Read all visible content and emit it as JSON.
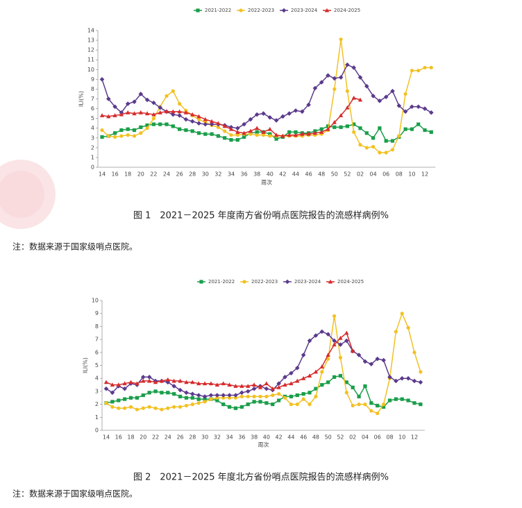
{
  "chart_data": [
    {
      "type": "line",
      "title": "图 1　2021－2025 年度南方省份哨点医院报告的流感样病例%",
      "note": "注：数据来源于国家级哨点医院。",
      "xlabel": "周次",
      "ylabel": "ILI(%)",
      "categories": [
        "14",
        null,
        "16",
        null,
        "18",
        null,
        "20",
        null,
        "22",
        null,
        "24",
        null,
        "26",
        null,
        "28",
        null,
        "30",
        null,
        "32",
        null,
        "34",
        null,
        "36",
        null,
        "38",
        null,
        "40",
        null,
        "42",
        null,
        "44",
        null,
        "46",
        null,
        "48",
        null,
        "50",
        null,
        "52",
        null,
        "02",
        null,
        "04",
        null,
        "06",
        null,
        "08",
        null,
        "10",
        null,
        "12",
        null
      ],
      "ylim": [
        0,
        14
      ],
      "yticks": [
        0,
        1,
        2,
        3,
        4,
        5,
        6,
        7,
        8,
        9,
        10,
        11,
        12,
        13,
        14
      ],
      "legend": "top",
      "series": [
        {
          "name": "2021-2022",
          "color": "#1a9e4a",
          "marker": "square",
          "values": [
            3.1,
            3.2,
            3.5,
            3.8,
            3.9,
            3.8,
            4.1,
            4.3,
            4.4,
            4.4,
            4.4,
            4.2,
            3.9,
            3.8,
            3.7,
            3.5,
            3.4,
            3.4,
            3.2,
            3.0,
            2.8,
            2.8,
            3.1,
            3.5,
            3.6,
            3.6,
            3.4,
            2.9,
            3.1,
            3.6,
            3.6,
            3.5,
            3.5,
            3.7,
            3.9,
            4.2,
            4.1,
            4.1,
            4.2,
            4.4,
            4.0,
            3.5,
            3.0,
            4.0,
            2.7,
            2.7,
            3.1,
            3.9,
            3.9,
            4.4,
            3.8,
            3.6
          ]
        },
        {
          "name": "2022-2023",
          "color": "#f2c122",
          "marker": "circle",
          "values": [
            3.8,
            3.2,
            3.1,
            3.2,
            3.3,
            3.2,
            3.5,
            4.0,
            5.0,
            6.2,
            7.3,
            7.8,
            6.5,
            5.8,
            5.3,
            4.9,
            4.6,
            4.3,
            4.1,
            3.7,
            3.3,
            3.3,
            3.4,
            3.4,
            3.3,
            3.3,
            3.2,
            3.2,
            3.2,
            3.2,
            3.2,
            3.2,
            3.3,
            3.3,
            3.4,
            3.8,
            8.0,
            13.1,
            7.8,
            3.6,
            2.3,
            2.0,
            2.1,
            1.5,
            1.5,
            1.8,
            3.2,
            7.5,
            9.9,
            9.9,
            10.2,
            10.2
          ]
        },
        {
          "name": "2023-2024",
          "color": "#5b3a8c",
          "marker": "diamond",
          "values": [
            9.0,
            7.0,
            6.2,
            5.6,
            6.5,
            6.7,
            7.5,
            6.9,
            6.6,
            6.1,
            5.7,
            5.4,
            5.3,
            4.9,
            4.7,
            4.5,
            4.4,
            4.4,
            4.4,
            4.3,
            4.1,
            4.0,
            4.4,
            4.9,
            5.4,
            5.5,
            5.1,
            4.8,
            5.2,
            5.5,
            5.8,
            5.7,
            6.4,
            8.1,
            8.7,
            9.4,
            9.1,
            9.2,
            10.5,
            10.2,
            9.2,
            8.3,
            7.3,
            6.8,
            7.2,
            7.8,
            6.3,
            5.7,
            6.2,
            6.2,
            6.0,
            5.6
          ]
        },
        {
          "name": "2024-2025",
          "color": "#d62b2b",
          "marker": "triangle",
          "values": [
            5.3,
            5.2,
            5.3,
            5.4,
            5.6,
            5.5,
            5.6,
            5.5,
            5.4,
            5.6,
            5.7,
            5.7,
            5.7,
            5.6,
            5.4,
            5.2,
            4.9,
            4.7,
            4.5,
            4.2,
            3.9,
            3.6,
            3.5,
            3.7,
            4.0,
            3.6,
            3.9,
            3.3,
            3.2,
            3.3,
            3.3,
            3.4,
            3.4,
            3.5,
            3.6,
            3.9,
            4.6,
            5.3,
            6.1,
            7.1,
            6.9,
            null,
            null,
            null,
            null,
            null,
            null,
            null,
            null,
            null,
            null,
            null
          ]
        }
      ]
    },
    {
      "type": "line",
      "title": "图 2　2021－2025 年度北方省份哨点医院报告的流感样病例%",
      "note": "注：数据来源于国家级哨点医院。",
      "xlabel": "周次",
      "ylabel": "ILI(%)",
      "categories": [
        "14",
        null,
        "16",
        null,
        "18",
        null,
        "20",
        null,
        "22",
        null,
        "24",
        null,
        "26",
        null,
        "28",
        null,
        "30",
        null,
        "32",
        null,
        "34",
        null,
        "36",
        null,
        "38",
        null,
        "40",
        null,
        "42",
        null,
        "44",
        null,
        "46",
        null,
        "48",
        null,
        "50",
        null,
        "52",
        null,
        "02",
        null,
        "04",
        null,
        "06",
        null,
        "08",
        null,
        "10",
        null,
        "12",
        null
      ],
      "ylim": [
        0,
        10
      ],
      "yticks": [
        0,
        1,
        2,
        3,
        4,
        5,
        6,
        7,
        8,
        9,
        10
      ],
      "legend": "top",
      "series": [
        {
          "name": "2021-2022",
          "color": "#1a9e4a",
          "marker": "square",
          "values": [
            2.1,
            2.2,
            2.3,
            2.4,
            2.5,
            2.5,
            2.7,
            2.9,
            3.0,
            2.9,
            2.9,
            2.8,
            2.6,
            2.5,
            2.5,
            2.4,
            2.4,
            2.4,
            2.3,
            2.0,
            1.8,
            1.7,
            1.8,
            2.0,
            2.2,
            2.2,
            2.1,
            2.0,
            2.3,
            2.6,
            2.6,
            2.7,
            2.8,
            2.9,
            3.2,
            3.5,
            3.7,
            4.1,
            4.2,
            3.7,
            3.3,
            2.6,
            3.4,
            2.1,
            1.9,
            1.8,
            2.3,
            2.4,
            2.4,
            2.3,
            2.1,
            2.0
          ]
        },
        {
          "name": "2022-2023",
          "color": "#f2c122",
          "marker": "circle",
          "values": [
            2.1,
            1.8,
            1.7,
            1.7,
            1.8,
            1.6,
            1.7,
            1.8,
            1.7,
            1.6,
            1.7,
            1.8,
            1.8,
            1.9,
            2.0,
            2.1,
            2.2,
            2.4,
            2.5,
            2.5,
            2.5,
            2.5,
            2.6,
            2.6,
            2.6,
            2.6,
            2.6,
            2.7,
            2.8,
            2.5,
            2.0,
            2.0,
            2.4,
            2.0,
            2.6,
            4.5,
            5.5,
            8.8,
            5.6,
            2.9,
            1.9,
            2.0,
            2.0,
            1.5,
            1.3,
            2.0,
            4.0,
            7.6,
            9.0,
            7.9,
            6.0,
            4.5
          ]
        },
        {
          "name": "2023-2024",
          "color": "#5b3a8c",
          "marker": "diamond",
          "values": [
            3.2,
            2.9,
            3.4,
            3.2,
            3.6,
            3.5,
            4.1,
            4.1,
            3.8,
            3.8,
            3.7,
            3.4,
            3.1,
            2.9,
            2.8,
            2.7,
            2.6,
            2.7,
            2.7,
            2.7,
            2.7,
            2.7,
            2.9,
            3.0,
            3.2,
            3.4,
            3.2,
            3.1,
            3.6,
            4.1,
            4.4,
            4.8,
            5.8,
            6.9,
            7.3,
            7.6,
            7.4,
            6.9,
            6.6,
            6.9,
            6.1,
            5.8,
            5.3,
            5.1,
            5.5,
            5.4,
            4.1,
            3.8,
            4.0,
            4.0,
            3.8,
            3.7
          ]
        },
        {
          "name": "2024-2025",
          "color": "#d62b2b",
          "marker": "triangle",
          "values": [
            3.7,
            3.5,
            3.5,
            3.6,
            3.7,
            3.6,
            3.8,
            3.8,
            3.7,
            3.8,
            3.9,
            3.8,
            3.8,
            3.7,
            3.7,
            3.6,
            3.6,
            3.6,
            3.5,
            3.6,
            3.5,
            3.4,
            3.4,
            3.4,
            3.5,
            3.3,
            3.6,
            3.2,
            3.3,
            3.5,
            3.6,
            3.8,
            4.0,
            4.2,
            4.5,
            4.9,
            5.8,
            6.6,
            7.1,
            7.5,
            6.1,
            null,
            null,
            null,
            null,
            null,
            null,
            null,
            null,
            null,
            null,
            null
          ]
        }
      ]
    }
  ]
}
